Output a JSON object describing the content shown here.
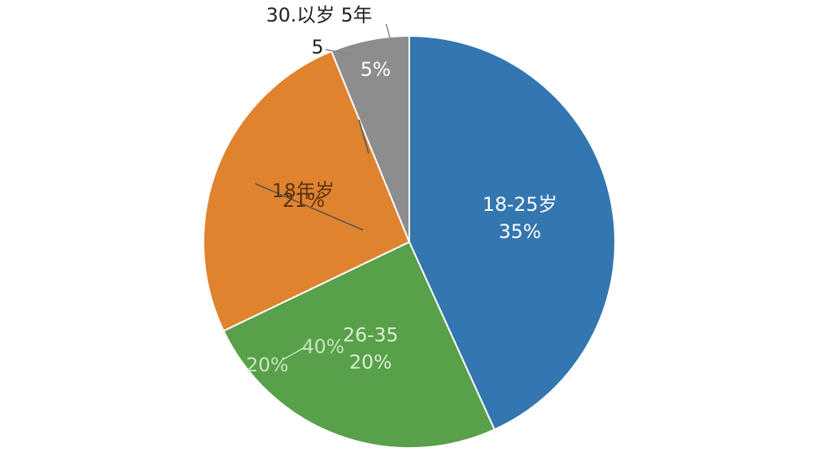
{
  "chart_data": {
    "type": "pie",
    "categories": [
      "18-25岁",
      "26-35",
      null,
      null
    ],
    "values": [
      35,
      20,
      21,
      5
    ],
    "value_labels": [
      "35%",
      "20%",
      "21%",
      "5%"
    ],
    "colors": [
      "#3476b0",
      "#58a04a",
      "#e0832f",
      "#8d8d8d"
    ],
    "annotations": [
      "30.以岁 5年",
      "5",
      "18年岁",
      "20%",
      "40%"
    ]
  }
}
